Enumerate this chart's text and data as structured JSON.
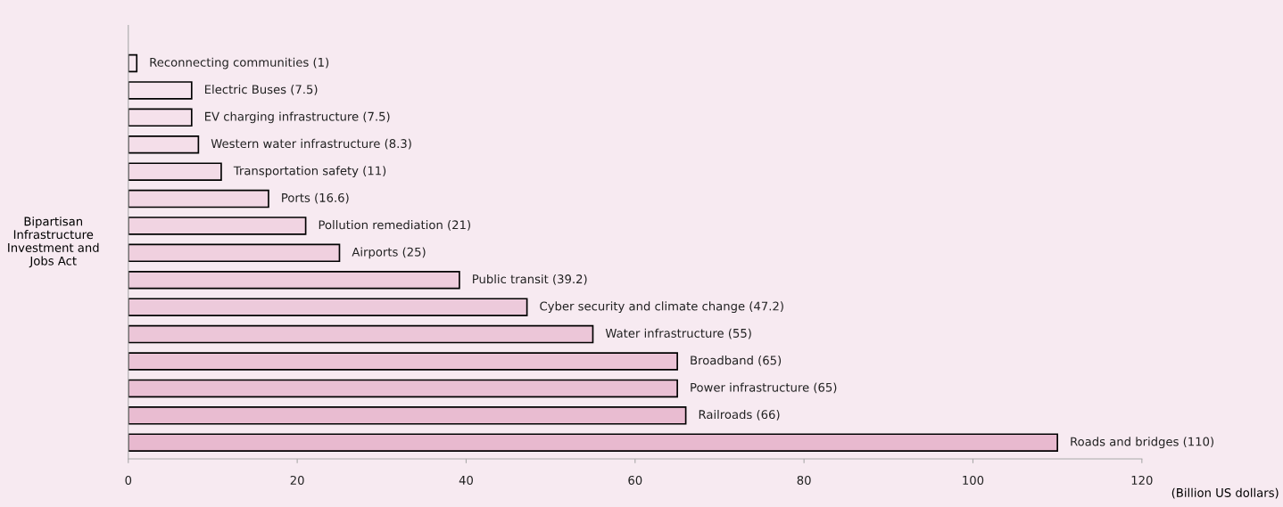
{
  "chart_data": {
    "type": "bar",
    "orientation": "horizontal",
    "ylabel": "Bipartisan\nInfrastructure\nInvestment and\nJobs Act",
    "xlabel": "(Billion US dollars)",
    "categories": [
      null,
      null,
      null,
      null,
      null,
      null,
      null,
      null,
      null,
      null,
      null,
      null,
      null,
      null,
      null
    ],
    "values": [
      1,
      7.5,
      7.5,
      8.3,
      11,
      16.6,
      21,
      25,
      39.2,
      47.2,
      55,
      65,
      65,
      66,
      110
    ],
    "value_labels": [
      "Reconnecting communities (1)",
      "Electric Buses (7.5)",
      "EV charging infrastructure (7.5)",
      "Western water infrastructure (8.3)",
      "Transportation safety (11)",
      "Ports (16.6)",
      "Pollution remediation (21)",
      "Airports (25)",
      "Public transit (39.2)",
      "Cyber security and climate change (47.2)",
      "Water infrastructure (55)",
      "Broadband (65)",
      "Power infrastructure (65)",
      "Railroads (66)",
      "Roads and bridges (110)"
    ],
    "colors": [
      "#f7e8f0",
      "#f6e5ee",
      "#f5e1eb",
      "#f4dee9",
      "#f3dbe7",
      "#f2d7e4",
      "#f1d4e2",
      "#f0d0df",
      "#eecddd",
      "#edcadb",
      "#ecc6d8",
      "#ebc3d6",
      "#eac0d4",
      "#e9bcd1",
      "#e8b9cf"
    ],
    "xlim": [
      0,
      120
    ],
    "xticks": [
      0,
      20,
      40,
      60,
      80,
      100,
      120
    ],
    "grid": false,
    "legend": false
  }
}
